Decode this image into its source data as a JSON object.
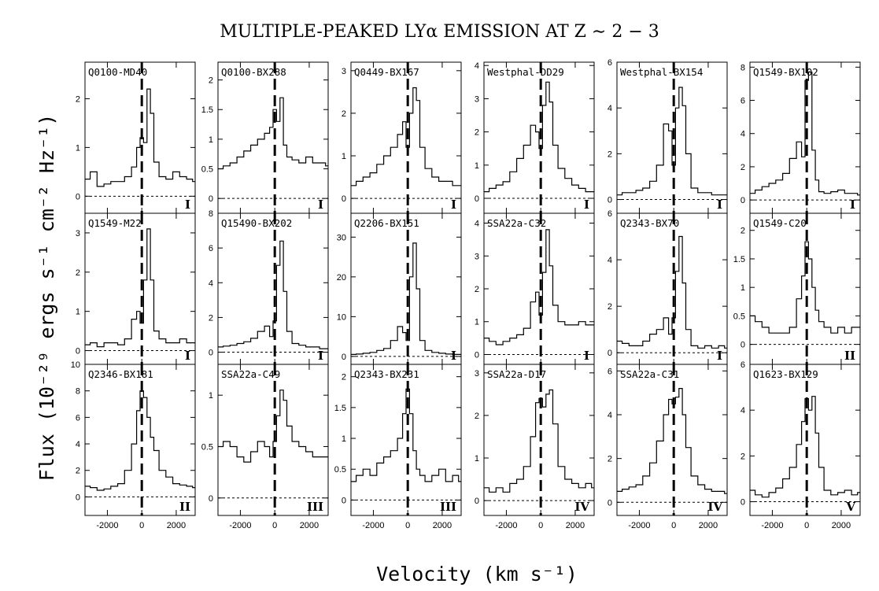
{
  "figure": {
    "title": "MULTIPLE-PEAKED LYα EMISSION AT Z ∼ 2 − 3",
    "ylabel": "Flux (10⁻²⁹ ergs s⁻¹ cm⁻² Hz⁻¹)",
    "xlabel": "Velocity (km s⁻¹)"
  },
  "chart_data": {
    "type": "line",
    "layout": "3 rows x 6 columns of panels",
    "shared_x": {
      "label": "Velocity (km s⁻¹)",
      "range": [
        -3300,
        3100
      ],
      "ticks": [
        -2000,
        0,
        2000
      ]
    },
    "reference_lines": {
      "vertical_dashed_at": 0,
      "horizontal_dotted_at": 0
    },
    "panels": [
      {
        "name": "Q0100-MD40",
        "class": "I",
        "ylim": [
          -0.35,
          2.75
        ],
        "yticks": [
          0,
          1,
          2
        ],
        "x": [
          -3200,
          -2800,
          -2400,
          -2000,
          -1600,
          -1200,
          -800,
          -400,
          -200,
          0,
          200,
          400,
          600,
          800,
          1200,
          1600,
          2000,
          2400,
          2800,
          3100
        ],
        "y": [
          0.35,
          0.5,
          0.2,
          0.25,
          0.3,
          0.3,
          0.4,
          0.6,
          1.0,
          1.2,
          1.1,
          2.2,
          1.7,
          0.7,
          0.4,
          0.35,
          0.5,
          0.4,
          0.35,
          0.3
        ]
      },
      {
        "name": "Q0100-BX288",
        "class": "I",
        "ylim": [
          -0.25,
          2.3
        ],
        "yticks": [
          0,
          0.5,
          1,
          1.5,
          2
        ],
        "x": [
          -3200,
          -2800,
          -2400,
          -2000,
          -1600,
          -1200,
          -800,
          -400,
          -200,
          0,
          200,
          400,
          600,
          800,
          1200,
          1600,
          2000,
          2400,
          2800,
          3100
        ],
        "y": [
          0.5,
          0.55,
          0.6,
          0.7,
          0.8,
          0.9,
          1.0,
          1.1,
          1.2,
          1.5,
          1.3,
          1.7,
          0.9,
          0.7,
          0.65,
          0.6,
          0.7,
          0.6,
          0.6,
          0.55
        ]
      },
      {
        "name": "Q0449-BX167",
        "class": "I",
        "ylim": [
          -0.35,
          3.2
        ],
        "yticks": [
          0,
          1,
          2,
          3
        ],
        "x": [
          -3200,
          -2800,
          -2400,
          -2000,
          -1600,
          -1200,
          -800,
          -400,
          -200,
          0,
          200,
          400,
          600,
          800,
          1200,
          1600,
          2000,
          2400,
          2800,
          3100
        ],
        "y": [
          0.3,
          0.4,
          0.5,
          0.6,
          0.8,
          1.0,
          1.2,
          1.5,
          1.8,
          1.2,
          2.0,
          2.6,
          2.3,
          1.2,
          0.7,
          0.5,
          0.4,
          0.4,
          0.3,
          0.3
        ]
      },
      {
        "name": "Westphal-DD29",
        "class": "I",
        "ylim": [
          -0.45,
          4.1
        ],
        "yticks": [
          0,
          1,
          2,
          3,
          4
        ],
        "x": [
          -3200,
          -2800,
          -2400,
          -2000,
          -1600,
          -1200,
          -800,
          -400,
          -200,
          0,
          200,
          400,
          600,
          800,
          1200,
          1600,
          2000,
          2400,
          2800,
          3100
        ],
        "y": [
          0.2,
          0.3,
          0.4,
          0.5,
          0.8,
          1.2,
          1.6,
          2.2,
          2.0,
          1.5,
          2.8,
          3.5,
          2.9,
          1.6,
          0.9,
          0.6,
          0.4,
          0.3,
          0.2,
          0.2
        ]
      },
      {
        "name": "Westphal-BX154",
        "class": "I",
        "ylim": [
          -0.6,
          6.0
        ],
        "yticks": [
          0,
          2,
          4,
          6
        ],
        "x": [
          -3200,
          -2800,
          -2400,
          -2000,
          -1600,
          -1200,
          -800,
          -400,
          -200,
          0,
          200,
          400,
          600,
          800,
          1200,
          1600,
          2000,
          2400,
          2800,
          3100
        ],
        "y": [
          0.2,
          0.3,
          0.3,
          0.4,
          0.5,
          0.8,
          1.5,
          3.3,
          3.0,
          1.5,
          4.0,
          4.9,
          4.1,
          2.0,
          0.5,
          0.3,
          0.3,
          0.2,
          0.2,
          0.2
        ]
      },
      {
        "name": "Q1549-BX102",
        "class": "I",
        "ylim": [
          -0.8,
          8.3
        ],
        "yticks": [
          0,
          2,
          4,
          6,
          8
        ],
        "x": [
          -3200,
          -2800,
          -2400,
          -2000,
          -1600,
          -1200,
          -800,
          -400,
          -200,
          0,
          200,
          400,
          600,
          800,
          1200,
          1600,
          2000,
          2400,
          2800,
          3100
        ],
        "y": [
          0.4,
          0.6,
          0.8,
          1.0,
          1.2,
          1.6,
          2.5,
          3.5,
          2.6,
          7.2,
          7.7,
          3.0,
          1.2,
          0.5,
          0.4,
          0.5,
          0.6,
          0.4,
          0.4,
          0.3
        ]
      },
      {
        "name": "Q1549-M22",
        "class": "I",
        "ylim": [
          -0.35,
          3.5
        ],
        "yticks": [
          0,
          1,
          2,
          3
        ],
        "x": [
          -3200,
          -2800,
          -2400,
          -2000,
          -1600,
          -1200,
          -800,
          -400,
          -200,
          0,
          200,
          400,
          600,
          800,
          1200,
          1600,
          2000,
          2400,
          2800,
          3100
        ],
        "y": [
          0.15,
          0.2,
          0.1,
          0.2,
          0.2,
          0.15,
          0.3,
          0.8,
          1.0,
          0.7,
          1.8,
          3.1,
          1.8,
          0.5,
          0.3,
          0.2,
          0.2,
          0.3,
          0.2,
          0.2
        ]
      },
      {
        "name": "Q15490-BX202",
        "class": "I",
        "ylim": [
          -0.7,
          8.0
        ],
        "yticks": [
          0,
          2,
          4,
          6,
          8
        ],
        "x": [
          -3200,
          -2800,
          -2400,
          -2000,
          -1600,
          -1200,
          -800,
          -400,
          -200,
          0,
          200,
          400,
          600,
          800,
          1200,
          1600,
          2000,
          2400,
          2800,
          3100
        ],
        "y": [
          0.3,
          0.35,
          0.4,
          0.5,
          0.6,
          0.8,
          1.2,
          1.5,
          0.9,
          1.8,
          5.0,
          6.4,
          3.5,
          1.2,
          0.5,
          0.4,
          0.3,
          0.3,
          0.2,
          0.2
        ]
      },
      {
        "name": "Q2206-BX151",
        "class": "I",
        "ylim": [
          -2.0,
          36.0
        ],
        "yticks": [
          0,
          10,
          20,
          30
        ],
        "x": [
          -3200,
          -2800,
          -2400,
          -2000,
          -1600,
          -1200,
          -800,
          -400,
          -200,
          0,
          200,
          400,
          600,
          800,
          1200,
          1600,
          2000,
          2400,
          2800,
          3100
        ],
        "y": [
          0.5,
          0.6,
          0.8,
          1.0,
          1.5,
          2.0,
          4.0,
          7.5,
          6.0,
          4.0,
          20.0,
          28.5,
          17.0,
          4.0,
          1.5,
          1.0,
          0.8,
          0.6,
          0.5,
          0.5
        ]
      },
      {
        "name": "SSA22a-C32",
        "class": "I",
        "ylim": [
          -0.3,
          4.3
        ],
        "yticks": [
          0,
          1,
          2,
          3,
          4
        ],
        "x": [
          -3200,
          -2800,
          -2400,
          -2000,
          -1600,
          -1200,
          -800,
          -400,
          -200,
          0,
          200,
          400,
          600,
          800,
          1200,
          1600,
          2000,
          2400,
          2800,
          3100
        ],
        "y": [
          0.5,
          0.4,
          0.3,
          0.4,
          0.5,
          0.6,
          0.8,
          1.6,
          1.9,
          1.2,
          2.5,
          3.8,
          2.7,
          1.5,
          1.0,
          0.9,
          0.9,
          1.0,
          0.9,
          0.9
        ]
      },
      {
        "name": "Q2343-BX70",
        "class": "I",
        "ylim": [
          -0.5,
          6.0
        ],
        "yticks": [
          0,
          2,
          4,
          6
        ],
        "x": [
          -3200,
          -2800,
          -2400,
          -2000,
          -1600,
          -1200,
          -800,
          -400,
          -200,
          0,
          200,
          400,
          600,
          800,
          1200,
          1600,
          2000,
          2400,
          2800,
          3100
        ],
        "y": [
          0.5,
          0.4,
          0.3,
          0.3,
          0.5,
          0.8,
          1.0,
          1.5,
          0.8,
          1.5,
          3.5,
          5.0,
          3.0,
          1.0,
          0.3,
          0.2,
          0.3,
          0.2,
          0.3,
          0.2
        ]
      },
      {
        "name": "Q1549-C20",
        "class": "II",
        "ylim": [
          -0.35,
          2.3
        ],
        "yticks": [
          0,
          0.5,
          1,
          1.5,
          2
        ],
        "x": [
          -3200,
          -2800,
          -2400,
          -2000,
          -1600,
          -1200,
          -800,
          -400,
          -200,
          0,
          200,
          400,
          600,
          800,
          1200,
          1600,
          2000,
          2400,
          2800,
          3100
        ],
        "y": [
          0.5,
          0.4,
          0.3,
          0.2,
          0.2,
          0.2,
          0.3,
          0.8,
          1.2,
          1.8,
          1.5,
          1.0,
          0.6,
          0.4,
          0.3,
          0.2,
          0.3,
          0.2,
          0.3,
          0.3
        ]
      },
      {
        "name": "Q2346-BX181",
        "class": "II",
        "ylim": [
          -1.4,
          10.0
        ],
        "yticks": [
          0,
          2,
          4,
          6,
          8,
          10
        ],
        "x": [
          -3200,
          -2800,
          -2400,
          -2000,
          -1600,
          -1200,
          -800,
          -400,
          -200,
          0,
          200,
          400,
          600,
          800,
          1200,
          1600,
          2000,
          2400,
          2800,
          3100
        ],
        "y": [
          0.8,
          0.7,
          0.5,
          0.6,
          0.8,
          1.0,
          2.0,
          4.0,
          6.5,
          8.0,
          7.5,
          6.0,
          4.5,
          3.5,
          2.0,
          1.5,
          1.0,
          0.9,
          0.8,
          0.7
        ]
      },
      {
        "name": "SSA22a-C49",
        "class": "III",
        "ylim": [
          -0.17,
          1.3
        ],
        "yticks": [
          0,
          0.5,
          1
        ],
        "x": [
          -3200,
          -2800,
          -2400,
          -2000,
          -1600,
          -1200,
          -800,
          -400,
          -200,
          0,
          200,
          400,
          600,
          800,
          1200,
          1600,
          2000,
          2400,
          2800,
          3100
        ],
        "y": [
          0.5,
          0.55,
          0.5,
          0.4,
          0.35,
          0.45,
          0.55,
          0.5,
          0.4,
          0.55,
          0.8,
          1.05,
          0.95,
          0.7,
          0.55,
          0.5,
          0.45,
          0.4,
          0.4,
          0.4
        ]
      },
      {
        "name": "Q2343-BX231",
        "class": "III",
        "ylim": [
          -0.25,
          2.2
        ],
        "yticks": [
          0,
          0.5,
          1,
          1.5,
          2
        ],
        "x": [
          -3200,
          -2800,
          -2400,
          -2000,
          -1600,
          -1200,
          -800,
          -400,
          -200,
          0,
          200,
          400,
          600,
          800,
          1200,
          1600,
          2000,
          2400,
          2800,
          3100
        ],
        "y": [
          0.3,
          0.4,
          0.5,
          0.4,
          0.6,
          0.7,
          0.8,
          1.0,
          1.4,
          1.8,
          1.4,
          0.8,
          0.5,
          0.4,
          0.3,
          0.4,
          0.5,
          0.3,
          0.4,
          0.3
        ]
      },
      {
        "name": "SSA22a-D17",
        "class": "IV",
        "ylim": [
          -0.35,
          3.2
        ],
        "yticks": [
          0,
          1,
          2,
          3
        ],
        "x": [
          -3200,
          -2800,
          -2400,
          -2000,
          -1600,
          -1200,
          -800,
          -400,
          -200,
          0,
          200,
          400,
          600,
          800,
          1200,
          1600,
          2000,
          2400,
          2800,
          3100
        ],
        "y": [
          0.3,
          0.2,
          0.3,
          0.2,
          0.4,
          0.5,
          0.8,
          1.5,
          2.3,
          2.4,
          2.2,
          2.5,
          2.6,
          1.8,
          0.8,
          0.5,
          0.4,
          0.3,
          0.4,
          0.3
        ]
      },
      {
        "name": "SSA22a-C31",
        "class": "IV",
        "ylim": [
          -0.6,
          6.3
        ],
        "yticks": [
          0,
          2,
          4,
          6
        ],
        "x": [
          -3200,
          -2800,
          -2400,
          -2000,
          -1600,
          -1200,
          -800,
          -400,
          -200,
          0,
          200,
          400,
          600,
          800,
          1200,
          1600,
          2000,
          2400,
          2800,
          3100
        ],
        "y": [
          0.5,
          0.6,
          0.7,
          0.8,
          1.2,
          1.8,
          2.8,
          4.0,
          4.7,
          4.5,
          4.8,
          5.2,
          4.0,
          2.5,
          1.2,
          0.8,
          0.6,
          0.5,
          0.5,
          0.4
        ]
      },
      {
        "name": "Q1623-BX129",
        "class": "V",
        "ylim": [
          -0.6,
          6.0
        ],
        "yticks": [
          0,
          2,
          4,
          6
        ],
        "x": [
          -3200,
          -2800,
          -2400,
          -2000,
          -1600,
          -1200,
          -800,
          -400,
          -200,
          0,
          200,
          400,
          600,
          800,
          1200,
          1600,
          2000,
          2400,
          2800,
          3100
        ],
        "y": [
          0.5,
          0.3,
          0.2,
          0.4,
          0.6,
          1.0,
          1.5,
          2.5,
          3.5,
          4.5,
          4.0,
          4.6,
          3.0,
          1.5,
          0.5,
          0.3,
          0.4,
          0.5,
          0.3,
          0.4
        ]
      }
    ]
  }
}
